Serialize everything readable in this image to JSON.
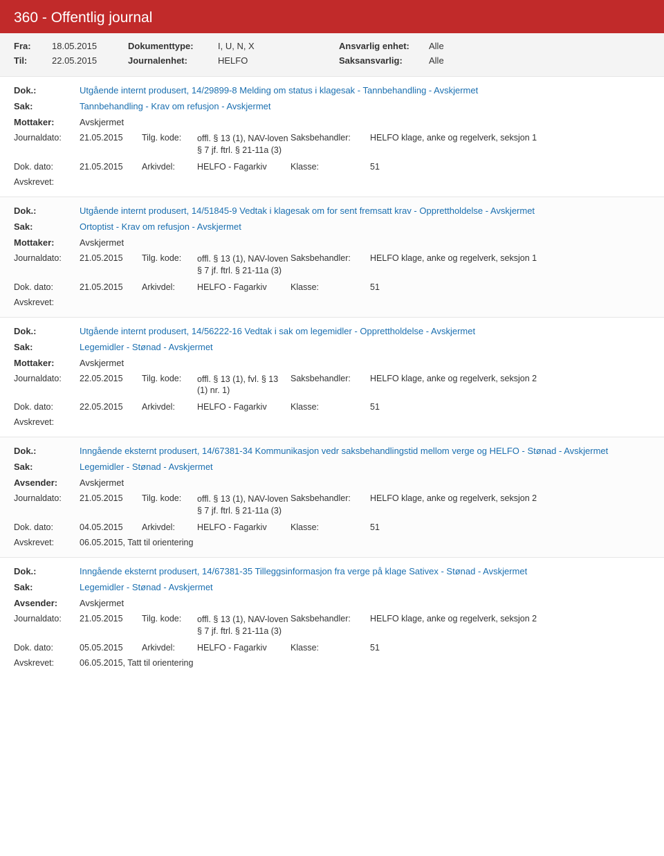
{
  "header": {
    "title": "360 - Offentlig journal"
  },
  "filters": {
    "fra_label": "Fra:",
    "fra": "18.05.2015",
    "til_label": "Til:",
    "til": "22.05.2015",
    "dokumenttype_label": "Dokumenttype:",
    "dokumenttype": "I, U, N, X",
    "journalenhet_label": "Journalenhet:",
    "journalenhet": "HELFO",
    "ansvarlig_enhet_label": "Ansvarlig enhet:",
    "ansvarlig_enhet": "Alle",
    "saksansvarlig_label": "Saksansvarlig:",
    "saksansvarlig": "Alle"
  },
  "labels": {
    "dok": "Dok.:",
    "sak": "Sak:",
    "mottaker": "Mottaker:",
    "avsender": "Avsender:",
    "journaldato": "Journaldato:",
    "tilgkode": "Tilg. kode:",
    "saksbehandler": "Saksbehandler:",
    "dokdato": "Dok. dato:",
    "arkivdel": "Arkivdel:",
    "klasse": "Klasse:",
    "avskrevet": "Avskrevet:"
  },
  "entries": [
    {
      "dok": "Utgående internt produsert, 14/29899-8 Melding om status i klagesak - Tannbehandling - Avskjermet",
      "sak": "Tannbehandling - Krav om refusjon - Avskjermet",
      "party_label": "Mottaker:",
      "party": "Avskjermet",
      "journaldato": "21.05.2015",
      "tilgkode": "offl. § 13 (1), NAV-loven § 7 jf. ftrl. § 21-11a (3)",
      "saksbehandler": "HELFO klage, anke og regelverk, seksjon 1",
      "dokdato": "21.05.2015",
      "arkivdel": "HELFO - Fagarkiv",
      "klasse": "51",
      "avskrevet": ""
    },
    {
      "dok": "Utgående internt produsert, 14/51845-9 Vedtak i klagesak om for sent fremsatt krav - Opprettholdelse - Avskjermet",
      "sak": "Ortoptist - Krav om refusjon - Avskjermet",
      "party_label": "Mottaker:",
      "party": "Avskjermet",
      "journaldato": "21.05.2015",
      "tilgkode": "offl. § 13 (1), NAV-loven § 7 jf. ftrl. § 21-11a (3)",
      "saksbehandler": "HELFO klage, anke og regelverk, seksjon 1",
      "dokdato": "21.05.2015",
      "arkivdel": "HELFO - Fagarkiv",
      "klasse": "51",
      "avskrevet": ""
    },
    {
      "dok": "Utgående internt produsert, 14/56222-16 Vedtak i sak om legemidler - Opprettholdelse - Avskjermet",
      "sak": "Legemidler - Stønad - Avskjermet",
      "party_label": "Mottaker:",
      "party": "Avskjermet",
      "journaldato": "22.05.2015",
      "tilgkode": "offl. § 13 (1), fvl. § 13 (1) nr. 1)",
      "saksbehandler": "HELFO klage, anke og regelverk, seksjon 2",
      "dokdato": "22.05.2015",
      "arkivdel": "HELFO - Fagarkiv",
      "klasse": "51",
      "avskrevet": ""
    },
    {
      "dok": "Inngående eksternt produsert, 14/67381-34 Kommunikasjon vedr saksbehandlingstid mellom verge og HELFO - Stønad - Avskjermet",
      "sak": "Legemidler - Stønad - Avskjermet",
      "party_label": "Avsender:",
      "party": "Avskjermet",
      "journaldato": "21.05.2015",
      "tilgkode": "offl. § 13 (1), NAV-loven § 7 jf. ftrl. § 21-11a (3)",
      "saksbehandler": "HELFO klage, anke og regelverk, seksjon 2",
      "dokdato": "04.05.2015",
      "arkivdel": "HELFO - Fagarkiv",
      "klasse": "51",
      "avskrevet": "06.05.2015, Tatt til orientering"
    },
    {
      "dok": "Inngående eksternt produsert, 14/67381-35 Tilleggsinformasjon fra verge på klage Sativex - Stønad - Avskjermet",
      "sak": "Legemidler - Stønad - Avskjermet",
      "party_label": "Avsender:",
      "party": "Avskjermet",
      "journaldato": "21.05.2015",
      "tilgkode": "offl. § 13 (1), NAV-loven § 7 jf. ftrl. § 21-11a (3)",
      "saksbehandler": "HELFO klage, anke og regelverk, seksjon 2",
      "dokdato": "05.05.2015",
      "arkivdel": "HELFO - Fagarkiv",
      "klasse": "51",
      "avskrevet": "06.05.2015, Tatt til orientering"
    }
  ]
}
